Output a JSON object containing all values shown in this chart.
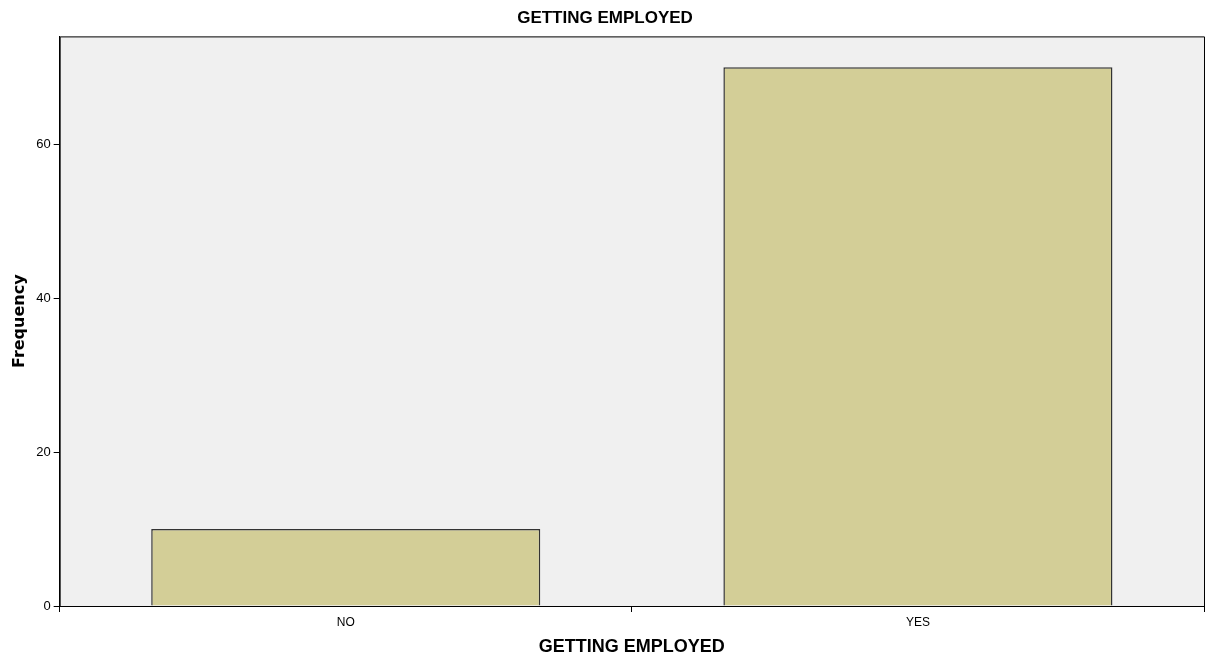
{
  "chart_data": {
    "type": "bar",
    "title": "GETTING EMPLOYED",
    "xlabel": "GETTING EMPLOYED",
    "ylabel": "Frequency",
    "categories": [
      "NO",
      "YES"
    ],
    "values": [
      10,
      70
    ],
    "color": "#d3ce97",
    "ylim": [
      0,
      74
    ],
    "yticks": [
      0,
      20,
      40,
      60
    ],
    "grid": false,
    "legend": false
  }
}
